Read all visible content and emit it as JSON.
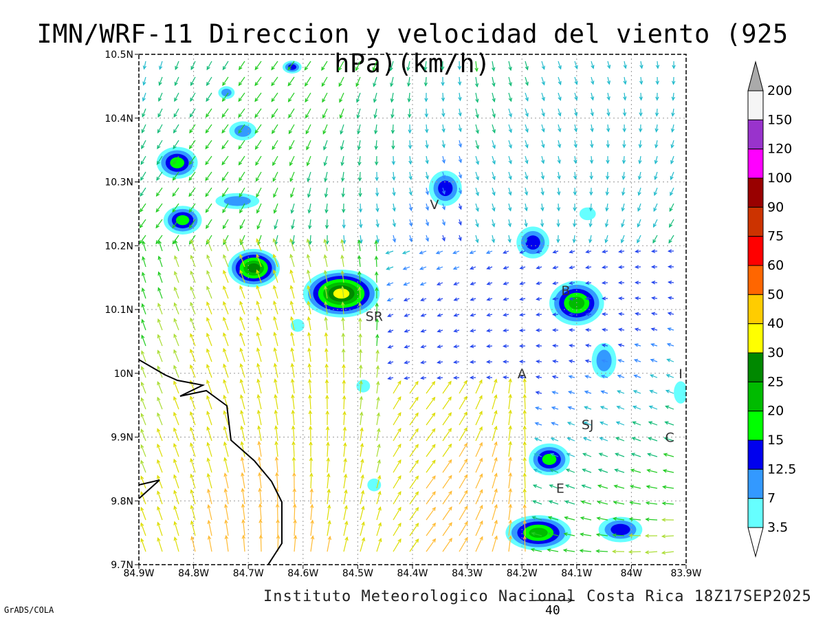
{
  "title": "IMN/WRF-11 Direccion y velocidad del viento (925 hPa)(km/h)",
  "footer": "Instituto Meteorologico Nacional Costa Rica 18Z17SEP2025",
  "credit": "GrADS/COLA",
  "reference_vector_label": "40",
  "axes": {
    "lon_ticks": [
      "84.9W",
      "84.8W",
      "84.7W",
      "84.6W",
      "84.5W",
      "84.4W",
      "84.3W",
      "84.2W",
      "84.1W",
      "84W",
      "83.9W"
    ],
    "lat_ticks": [
      "10.5N",
      "10.4N",
      "10.3N",
      "10.2N",
      "10.1N",
      "10N",
      "9.9N",
      "9.8N",
      "9.7N"
    ]
  },
  "colorbar": {
    "labels": [
      "200",
      "150",
      "120",
      "100",
      "90",
      "75",
      "60",
      "50",
      "40",
      "30",
      "25",
      "20",
      "15",
      "12.5",
      "7",
      "3.5"
    ],
    "colors": [
      "#f5f5f5",
      "#9933cc",
      "#ff00ff",
      "#990000",
      "#cc3300",
      "#ff0000",
      "#ff6600",
      "#ffcc00",
      "#ffff00",
      "#008800",
      "#00bb00",
      "#00ff00",
      "#0000ee",
      "#3399ff",
      "#66ffff"
    ],
    "top_cap_color": "#aaaaaa",
    "bottom_cap_color": "#ffffff"
  },
  "station_labels": [
    {
      "label": "V",
      "lon": -84.36,
      "lat": 10.265
    },
    {
      "label": "SR",
      "lon": -84.47,
      "lat": 10.09
    },
    {
      "label": "B",
      "lon": -84.12,
      "lat": 10.13
    },
    {
      "label": "A",
      "lon": -84.2,
      "lat": 10.0
    },
    {
      "label": "I",
      "lon": -83.91,
      "lat": 10.0
    },
    {
      "label": "SJ",
      "lon": -84.08,
      "lat": 9.92
    },
    {
      "label": "C",
      "lon": -83.93,
      "lat": 9.9
    },
    {
      "label": "E",
      "lon": -84.13,
      "lat": 9.82
    }
  ],
  "speed_patches": [
    {
      "lon": -84.83,
      "lat": 10.33,
      "w": 0.075,
      "h": 0.05,
      "level": "15"
    },
    {
      "lon": -84.82,
      "lat": 10.24,
      "w": 0.07,
      "h": 0.045,
      "level": "15"
    },
    {
      "lon": -84.69,
      "lat": 10.165,
      "w": 0.095,
      "h": 0.06,
      "level": "25"
    },
    {
      "lon": -84.53,
      "lat": 10.125,
      "w": 0.14,
      "h": 0.075,
      "level": "30"
    },
    {
      "lon": -84.34,
      "lat": 10.29,
      "w": 0.06,
      "h": 0.055,
      "level": "12.5"
    },
    {
      "lon": -84.18,
      "lat": 10.205,
      "w": 0.06,
      "h": 0.05,
      "level": "12.5"
    },
    {
      "lon": -84.1,
      "lat": 10.11,
      "w": 0.1,
      "h": 0.07,
      "level": "20"
    },
    {
      "lon": -84.05,
      "lat": 10.02,
      "w": 0.045,
      "h": 0.055,
      "level": "7"
    },
    {
      "lon": -84.15,
      "lat": 9.865,
      "w": 0.075,
      "h": 0.05,
      "level": "15"
    },
    {
      "lon": -84.17,
      "lat": 9.75,
      "w": 0.12,
      "h": 0.055,
      "level": "20"
    },
    {
      "lon": -84.02,
      "lat": 9.755,
      "w": 0.08,
      "h": 0.04,
      "level": "12.5"
    },
    {
      "lon": -84.72,
      "lat": 10.27,
      "w": 0.08,
      "h": 0.025,
      "level": "7"
    },
    {
      "lon": -84.71,
      "lat": 10.38,
      "w": 0.05,
      "h": 0.03,
      "level": "7"
    },
    {
      "lon": -84.74,
      "lat": 10.44,
      "w": 0.03,
      "h": 0.02,
      "level": "7"
    },
    {
      "lon": -84.62,
      "lat": 10.48,
      "w": 0.035,
      "h": 0.02,
      "level": "12.5"
    },
    {
      "lon": -84.61,
      "lat": 10.075,
      "w": 0.025,
      "h": 0.02,
      "level": "3.5"
    },
    {
      "lon": -84.49,
      "lat": 9.98,
      "w": 0.025,
      "h": 0.02,
      "level": "3.5"
    },
    {
      "lon": -84.47,
      "lat": 9.825,
      "w": 0.025,
      "h": 0.02,
      "level": "3.5"
    },
    {
      "lon": -84.08,
      "lat": 10.25,
      "w": 0.03,
      "h": 0.02,
      "level": "3.5"
    },
    {
      "lon": -83.91,
      "lat": 9.97,
      "w": 0.025,
      "h": 0.035,
      "level": "3.5"
    }
  ]
}
